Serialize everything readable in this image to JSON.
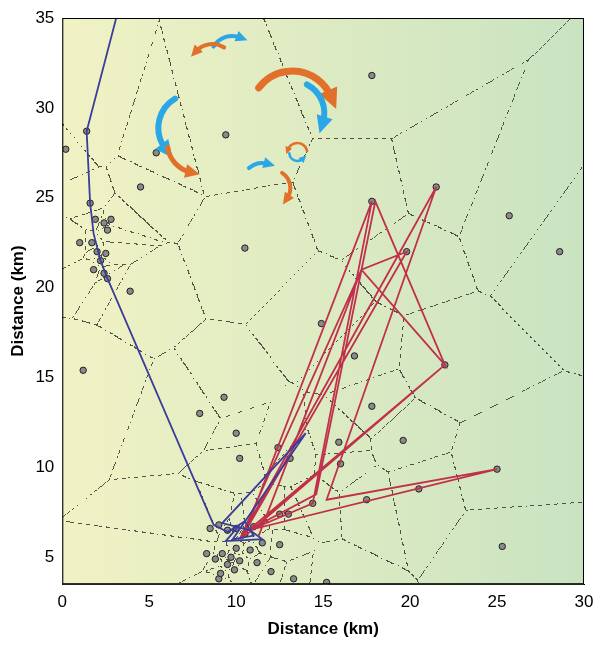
{
  "chart_data": {
    "type": "scatter",
    "x_label": "Distance (km)",
    "y_label": "Distance (km)",
    "xlim": [
      0,
      30
    ],
    "ylim": [
      3.5,
      35
    ],
    "xticks": [
      0,
      5,
      10,
      15,
      20,
      25,
      30
    ],
    "yticks": [
      5,
      10,
      15,
      20,
      25,
      30,
      35
    ],
    "grid": false,
    "series": [
      {
        "type": "scatter",
        "marker": "circle",
        "color": "#8a8a8a",
        "x": [
          0.2,
          1.4,
          1.6,
          1.7,
          2.0,
          1.8,
          2.2,
          2.5,
          2.4,
          2.6,
          1.9,
          2.4,
          2.8,
          2.6,
          1.0,
          3.9,
          1.2,
          4.5,
          5.4,
          9.4,
          10.5,
          17.8,
          17.8,
          19.8,
          21.5,
          25.7,
          28.6,
          14.9,
          9.3,
          7.9,
          10.0,
          12.4,
          13.1,
          15.9,
          17.8,
          19.6,
          22.0,
          16.8,
          16.0,
          14.4,
          17.5,
          20.5,
          25.0,
          25.3,
          15.2,
          13.3,
          12.5,
          13.0,
          9.0,
          10.2,
          8.5,
          9.0,
          9.5,
          10.0,
          10.5,
          11.0,
          9.2,
          9.7,
          10.0,
          8.8,
          9.5,
          10.2,
          10.8,
          11.5,
          9.9,
          8.3,
          11.2,
          12.0,
          12.5,
          9.1
        ],
        "values": [
          27.7,
          28.7,
          24.7,
          22.5,
          22.0,
          21.0,
          21.5,
          21.9,
          20.8,
          20.5,
          23.8,
          23.6,
          23.8,
          23.2,
          22.5,
          19.8,
          15.4,
          25.6,
          27.5,
          28.5,
          22.2,
          31.8,
          24.8,
          22.0,
          25.6,
          24.0,
          22.0,
          18.0,
          13.9,
          13.0,
          11.9,
          11.1,
          10.5,
          11.4,
          13.4,
          11.5,
          15.7,
          16.2,
          10.2,
          8.0,
          8.2,
          8.8,
          9.9,
          5.6,
          3.6,
          3.8,
          7.4,
          7.4,
          3.8,
          10.5,
          6.6,
          6.8,
          6.5,
          6.6,
          6.3,
          6.7,
          5.2,
          5.0,
          5.5,
          4.9,
          4.6,
          4.8,
          5.4,
          5.8,
          4.3,
          5.2,
          4.7,
          4.2,
          5.7,
          4.1
        ]
      },
      {
        "type": "line",
        "line_style": "solid",
        "color": "#3a3d9a",
        "x": [
          3.1,
          1.4,
          1.6,
          1.8,
          2.2,
          2.6,
          8.7,
          9.5,
          10.5,
          11.0,
          9.8,
          14.0,
          9.2,
          10.8,
          11.5,
          9.4,
          10.2
        ],
        "values": [
          35.0,
          28.7,
          24.7,
          23.0,
          21.5,
          20.5,
          6.8,
          6.4,
          7.0,
          6.2,
          6.0,
          11.9,
          6.9,
          6.5,
          6.0,
          5.9,
          6.8
        ]
      },
      {
        "type": "line",
        "line_style": "solid",
        "color": "#c0304a",
        "x": [
          11.3,
          17.2,
          22.0,
          18.0,
          14.6,
          10.5,
          19.8,
          17.2,
          10.2,
          21.5,
          15.2,
          25.0,
          10.7,
          22.0,
          10.4,
          17.8,
          14.4,
          11.0
        ],
        "values": [
          6.2,
          21.0,
          15.7,
          24.8,
          8.5,
          6.4,
          22.0,
          21.0,
          6.0,
          25.6,
          8.2,
          9.9,
          6.5,
          15.7,
          6.1,
          24.8,
          8.0,
          6.6
        ]
      }
    ]
  }
}
